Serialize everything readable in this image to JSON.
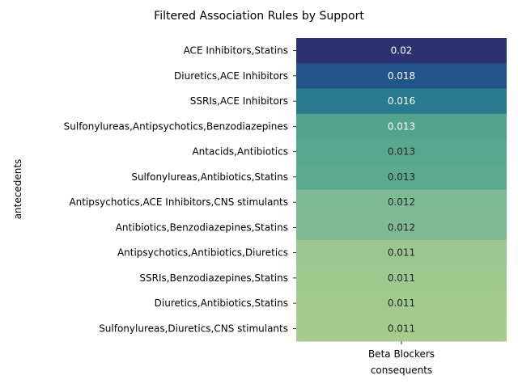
{
  "chart_data": {
    "type": "heatmap",
    "title": "Filtered Association Rules by Support",
    "xlabel": "consequents",
    "ylabel": "antecedents",
    "columns": [
      "Beta Blockers"
    ],
    "rows": [
      "ACE Inhibitors,Statins",
      "Diuretics,ACE Inhibitors",
      "SSRIs,ACE Inhibitors",
      "Sulfonylureas,Antipsychotics,Benzodiazepines",
      "Antacids,Antibiotics",
      "Sulfonylureas,Antibiotics,Statins",
      "Antipsychotics,ACE Inhibitors,CNS stimulants",
      "Antibiotics,Benzodiazepines,Statins",
      "Antipsychotics,Antibiotics,Diuretics",
      "SSRIs,Benzodiazepines,Statins",
      "Diuretics,Antibiotics,Statins",
      "Sulfonylureas,Diuretics,CNS stimulants"
    ],
    "values": [
      0.02,
      0.018,
      0.016,
      0.013,
      0.013,
      0.013,
      0.012,
      0.012,
      0.011,
      0.011,
      0.011,
      0.011
    ],
    "value_labels": [
      "0.02",
      "0.018",
      "0.016",
      "0.013",
      "0.013",
      "0.013",
      "0.012",
      "0.012",
      "0.011",
      "0.011",
      "0.011",
      "0.011"
    ],
    "cell_colors": [
      "#2c3172",
      "#21558a",
      "#287b8e",
      "#53a48e",
      "#58a78f",
      "#5ca990",
      "#7db992",
      "#80ba92",
      "#9bc690",
      "#9fc88f",
      "#a2c98e",
      "#a5cb8d"
    ],
    "colormap": "crest",
    "colorbar": false
  }
}
